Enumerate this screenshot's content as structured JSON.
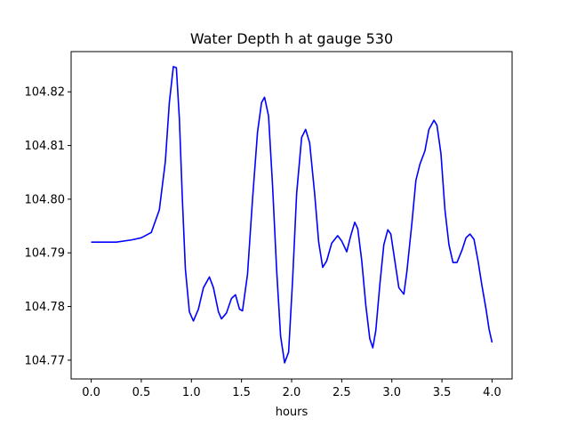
{
  "chart_data": {
    "type": "line",
    "title": "Water Depth h at gauge 530",
    "xlabel": "hours",
    "ylabel": "",
    "xlim": [
      -0.2,
      4.2
    ],
    "ylim": [
      104.7665,
      104.8275
    ],
    "xticks": [
      0.0,
      0.5,
      1.0,
      1.5,
      2.0,
      2.5,
      3.0,
      3.5,
      4.0
    ],
    "xtick_labels": [
      "0.0",
      "0.5",
      "1.0",
      "1.5",
      "2.0",
      "2.5",
      "3.0",
      "3.5",
      "4.0"
    ],
    "yticks": [
      104.77,
      104.78,
      104.79,
      104.8,
      104.81,
      104.82
    ],
    "ytick_labels": [
      "104.77",
      "104.78",
      "104.79",
      "104.80",
      "104.81",
      "104.82"
    ],
    "grid": false,
    "series": [
      {
        "color": "#0000ff",
        "points": [
          [
            0.0,
            104.792
          ],
          [
            0.25,
            104.792
          ],
          [
            0.4,
            104.7924
          ],
          [
            0.5,
            104.7928
          ],
          [
            0.6,
            104.7938
          ],
          [
            0.68,
            104.798
          ],
          [
            0.74,
            104.807
          ],
          [
            0.78,
            104.818
          ],
          [
            0.82,
            104.8247
          ],
          [
            0.85,
            104.8245
          ],
          [
            0.88,
            104.815
          ],
          [
            0.91,
            104.8
          ],
          [
            0.94,
            104.787
          ],
          [
            0.98,
            104.779
          ],
          [
            1.02,
            104.7773
          ],
          [
            1.07,
            104.7795
          ],
          [
            1.12,
            104.7835
          ],
          [
            1.18,
            104.7855
          ],
          [
            1.22,
            104.7835
          ],
          [
            1.27,
            104.779
          ],
          [
            1.3,
            104.7777
          ],
          [
            1.35,
            104.7788
          ],
          [
            1.4,
            104.7815
          ],
          [
            1.44,
            104.7822
          ],
          [
            1.48,
            104.7795
          ],
          [
            1.51,
            104.7792
          ],
          [
            1.56,
            104.786
          ],
          [
            1.61,
            104.8
          ],
          [
            1.66,
            104.8125
          ],
          [
            1.7,
            104.818
          ],
          [
            1.73,
            104.819
          ],
          [
            1.77,
            104.8155
          ],
          [
            1.81,
            104.8025
          ],
          [
            1.85,
            104.787
          ],
          [
            1.89,
            104.7745
          ],
          [
            1.93,
            104.7695
          ],
          [
            1.97,
            104.7715
          ],
          [
            2.01,
            104.785
          ],
          [
            2.05,
            104.801
          ],
          [
            2.1,
            104.8115
          ],
          [
            2.14,
            104.813
          ],
          [
            2.18,
            104.8105
          ],
          [
            2.23,
            104.801
          ],
          [
            2.27,
            104.792
          ],
          [
            2.31,
            104.7873
          ],
          [
            2.35,
            104.7885
          ],
          [
            2.4,
            104.7918
          ],
          [
            2.46,
            104.7932
          ],
          [
            2.5,
            104.7922
          ],
          [
            2.55,
            104.7902
          ],
          [
            2.59,
            104.7932
          ],
          [
            2.63,
            104.7957
          ],
          [
            2.66,
            104.7945
          ],
          [
            2.7,
            104.7885
          ],
          [
            2.74,
            104.7803
          ],
          [
            2.78,
            104.774
          ],
          [
            2.81,
            104.7723
          ],
          [
            2.84,
            104.7755
          ],
          [
            2.88,
            104.784
          ],
          [
            2.92,
            104.7915
          ],
          [
            2.96,
            104.7943
          ],
          [
            2.99,
            104.7935
          ],
          [
            3.03,
            104.7885
          ],
          [
            3.07,
            104.7835
          ],
          [
            3.12,
            104.7823
          ],
          [
            3.15,
            104.7865
          ],
          [
            3.2,
            104.7955
          ],
          [
            3.24,
            104.8035
          ],
          [
            3.28,
            104.8065
          ],
          [
            3.33,
            104.809
          ],
          [
            3.37,
            104.813
          ],
          [
            3.42,
            104.8147
          ],
          [
            3.45,
            104.8138
          ],
          [
            3.49,
            104.8085
          ],
          [
            3.53,
            104.798
          ],
          [
            3.57,
            104.7915
          ],
          [
            3.61,
            104.7882
          ],
          [
            3.65,
            104.7882
          ],
          [
            3.7,
            104.7905
          ],
          [
            3.74,
            104.7928
          ],
          [
            3.78,
            104.7935
          ],
          [
            3.82,
            104.7925
          ],
          [
            3.86,
            104.7885
          ],
          [
            3.9,
            104.7838
          ],
          [
            3.94,
            104.7795
          ],
          [
            3.97,
            104.7758
          ],
          [
            4.0,
            104.7733
          ]
        ]
      }
    ]
  }
}
